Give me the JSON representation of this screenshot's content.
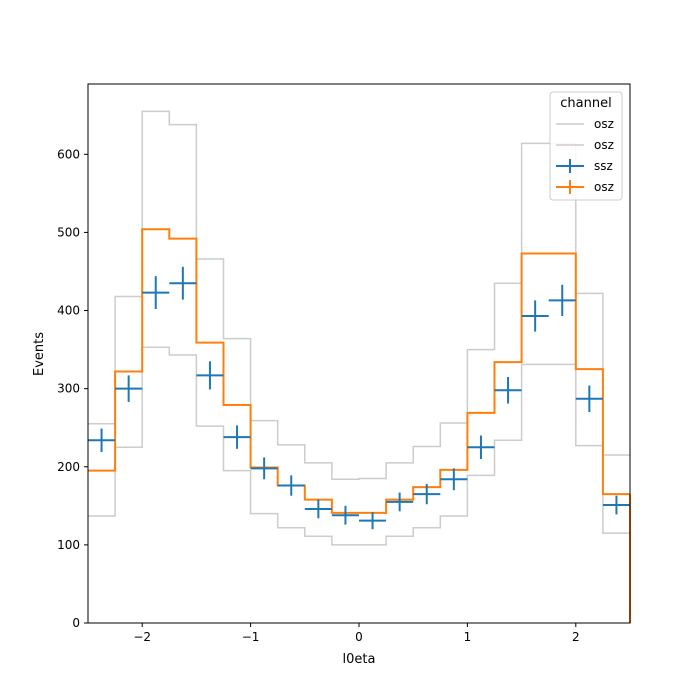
{
  "chart_data": {
    "type": "histogram-step",
    "xlabel": "l0eta",
    "ylabel": "Events",
    "xlim": [
      -2.5,
      2.5
    ],
    "ylim": [
      0,
      690
    ],
    "grid": false,
    "bin_edges": [
      -2.5,
      -2.25,
      -2.0,
      -1.75,
      -1.5,
      -1.25,
      -1.0,
      -0.75,
      -0.5,
      -0.25,
      0.0,
      0.25,
      0.5,
      0.75,
      1.0,
      1.25,
      1.5,
      1.75,
      2.0,
      2.25,
      2.5
    ],
    "x_ticks": [
      -2,
      -1,
      0,
      1,
      2
    ],
    "x_tick_labels": [
      "−2",
      "−1",
      "0",
      "1",
      "2"
    ],
    "y_ticks": [
      0,
      100,
      200,
      300,
      400,
      500,
      600
    ],
    "y_tick_labels": [
      "0",
      "100",
      "200",
      "300",
      "400",
      "500",
      "600"
    ],
    "legend": {
      "title": "channel",
      "placement": "top-right",
      "entries": [
        {
          "label": "osz",
          "color": "#cccccc",
          "marker": "line"
        },
        {
          "label": "osz",
          "color": "#cccccc",
          "marker": "line"
        },
        {
          "label": "ssz",
          "color": "#1f77b4",
          "marker": "errorbar"
        },
        {
          "label": "osz",
          "color": "#ff7f0e",
          "marker": "errorbar"
        }
      ]
    },
    "series": [
      {
        "name": "osz",
        "style": "step",
        "color": "#cccccc",
        "values": [
          255,
          418,
          655,
          638,
          466,
          364,
          259,
          228,
          205,
          184,
          185,
          205,
          226,
          256,
          350,
          435,
          614,
          614,
          422,
          215
        ]
      },
      {
        "name": "osz",
        "style": "step",
        "color": "#cccccc",
        "values": [
          137,
          225,
          353,
          343,
          252,
          195,
          140,
          122,
          111,
          100,
          100,
          111,
          122,
          137,
          189,
          234,
          331,
          331,
          227,
          115
        ]
      },
      {
        "name": "ssz",
        "style": "errorbar",
        "color": "#1f77b4",
        "values": [
          234,
          300,
          423,
          435,
          317,
          238,
          198,
          176,
          146,
          138,
          131,
          155,
          165,
          184,
          225,
          298,
          393,
          413,
          287,
          151
        ],
        "errors": [
          15,
          17,
          21,
          21,
          18,
          15,
          14,
          13,
          12,
          12,
          11,
          12,
          13,
          14,
          15,
          17,
          20,
          20,
          17,
          12
        ]
      },
      {
        "name": "osz",
        "style": "step",
        "color": "#ff7f0e",
        "values": [
          195,
          322,
          504,
          492,
          359,
          279,
          199,
          176,
          158,
          141,
          141,
          158,
          174,
          196,
          269,
          334,
          473,
          473,
          325,
          165
        ]
      }
    ]
  }
}
